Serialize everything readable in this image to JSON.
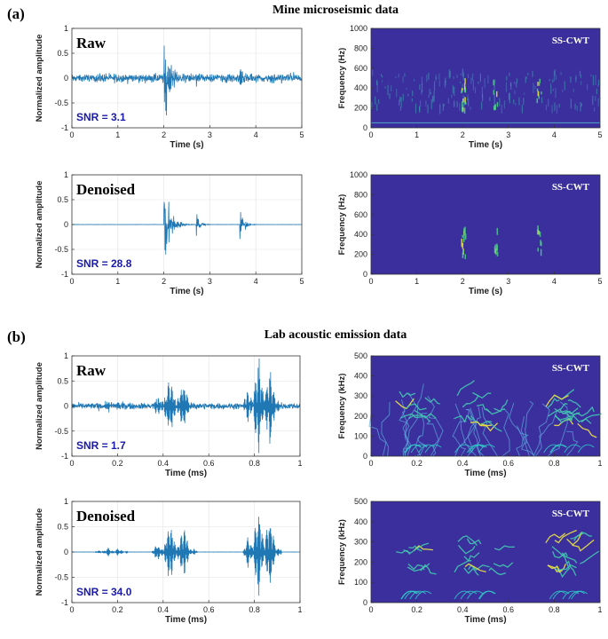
{
  "panel_a": {
    "label": "(a)",
    "title": "Mine microseismic data",
    "time_label": "Time (s)",
    "amp_label": "Normalized amplitude",
    "freq_label": "Frequency (Hz)",
    "raw": {
      "tag": "Raw",
      "snr": "SNR = 3.1"
    },
    "denoised": {
      "tag": "Denoised",
      "snr": "SNR = 28.8"
    },
    "sscwt": "SS-CWT",
    "x_ticks": [
      "0",
      "1",
      "2",
      "3",
      "4",
      "5"
    ],
    "y_ticks": [
      "1",
      "0.5",
      "0",
      "-0.5",
      "-1"
    ],
    "f_ticks": [
      "1000",
      "800",
      "600",
      "400",
      "200",
      "0"
    ]
  },
  "panel_b": {
    "label": "(b)",
    "title": "Lab acoustic emission data",
    "time_label": "Time (ms)",
    "amp_label": "Normalized amplitude",
    "freq_label": "Frequency (kHz)",
    "raw": {
      "tag": "Raw",
      "snr": "SNR = 1.7"
    },
    "denoised": {
      "tag": "Denoised",
      "snr": "SNR = 34.0"
    },
    "sscwt": "SS-CWT",
    "x_ticks": [
      "0",
      "0.2",
      "0.4",
      "0.6",
      "0.8",
      "1"
    ],
    "y_ticks": [
      "1",
      "0.5",
      "0",
      "-0.5",
      "-1"
    ],
    "f_ticks": [
      "500",
      "400",
      "300",
      "200",
      "100",
      "0"
    ]
  },
  "chart_data": [
    {
      "type": "line",
      "title": "Raw",
      "xlabel": "Time (s)",
      "ylabel": "Normalized amplitude",
      "xlim": [
        0,
        5
      ],
      "ylim": [
        -1,
        1
      ],
      "annotation": "SNR = 3.1",
      "events_s": [
        2.0,
        2.7,
        3.65
      ],
      "noise_floor": 0.15
    },
    {
      "type": "heatmap",
      "title": "SS-CWT",
      "xlabel": "Time (s)",
      "ylabel": "Frequency (Hz)",
      "xlim": [
        0,
        5
      ],
      "ylim": [
        0,
        1000
      ],
      "energy_band_hz": [
        150,
        550
      ]
    },
    {
      "type": "line",
      "title": "Denoised",
      "xlabel": "Time (s)",
      "ylabel": "Normalized amplitude",
      "xlim": [
        0,
        5
      ],
      "ylim": [
        -1,
        1
      ],
      "annotation": "SNR = 28.8",
      "events_s": [
        2.0,
        2.7,
        3.65
      ]
    },
    {
      "type": "heatmap",
      "title": "SS-CWT",
      "xlabel": "Time (s)",
      "ylabel": "Frequency (Hz)",
      "xlim": [
        0,
        5
      ],
      "ylim": [
        0,
        1000
      ]
    },
    {
      "type": "line",
      "title": "Raw",
      "xlabel": "Time (ms)",
      "ylabel": "Normalized amplitude",
      "xlim": [
        0,
        1
      ],
      "ylim": [
        -1,
        1
      ],
      "annotation": "SNR = 1.7",
      "bursts_ms": [
        [
          0.1,
          0.25
        ],
        [
          0.35,
          0.55
        ],
        [
          0.75,
          0.92
        ]
      ]
    },
    {
      "type": "heatmap",
      "title": "SS-CWT",
      "xlabel": "Time (ms)",
      "ylabel": "Frequency (kHz)",
      "xlim": [
        0,
        1
      ],
      "ylim": [
        0,
        500
      ]
    },
    {
      "type": "line",
      "title": "Denoised",
      "xlabel": "Time (ms)",
      "ylabel": "Normalized amplitude",
      "xlim": [
        0,
        1
      ],
      "ylim": [
        -1,
        1
      ],
      "annotation": "SNR = 34.0",
      "bursts_ms": [
        [
          0.1,
          0.25
        ],
        [
          0.35,
          0.55
        ],
        [
          0.75,
          0.92
        ]
      ]
    },
    {
      "type": "heatmap",
      "title": "SS-CWT",
      "xlabel": "Time (ms)",
      "ylabel": "Frequency (kHz)",
      "xlim": [
        0,
        1
      ],
      "ylim": [
        0,
        500
      ]
    }
  ]
}
